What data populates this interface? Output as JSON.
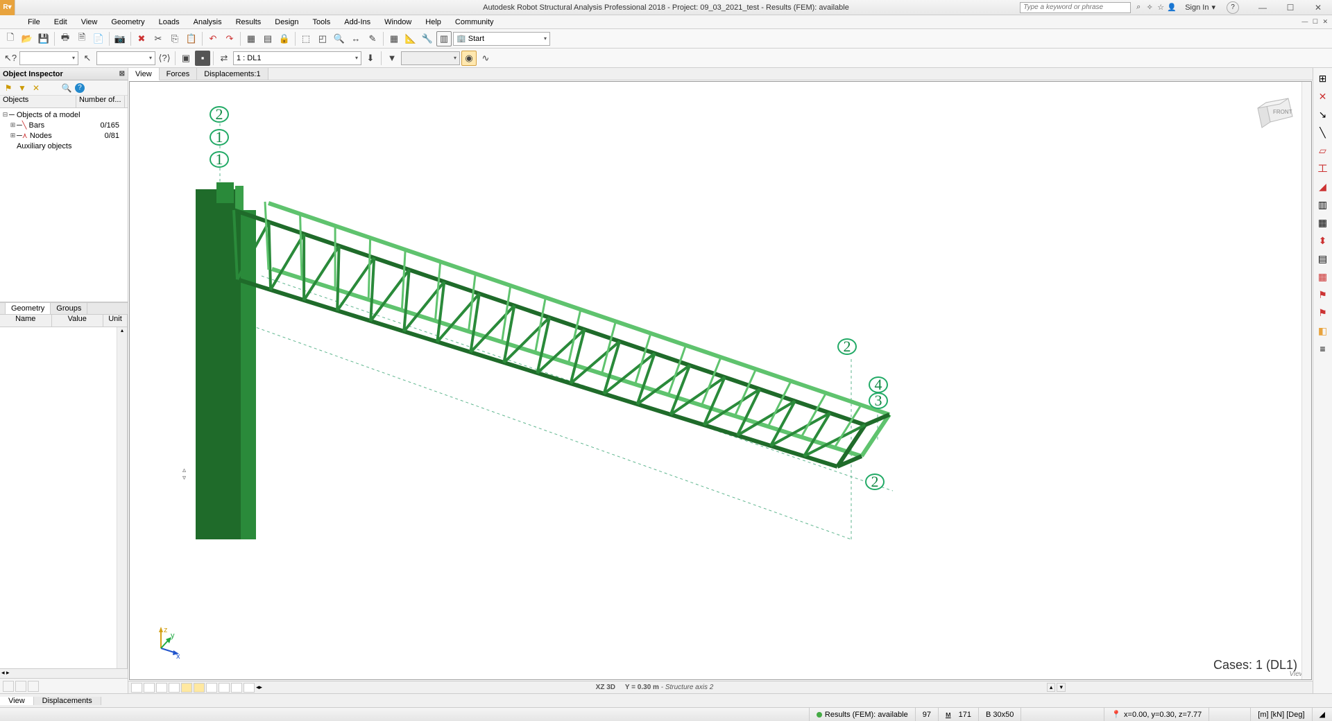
{
  "title": "Autodesk Robot Structural Analysis Professional 2018 - Project: 09_03_2021_test - Results (FEM): available",
  "search_placeholder": "Type a keyword or phrase",
  "signin": "Sign In",
  "menu": [
    "File",
    "Edit",
    "View",
    "Geometry",
    "Loads",
    "Analysis",
    "Results",
    "Design",
    "Tools",
    "Add-Ins",
    "Window",
    "Help",
    "Community"
  ],
  "toolbar2": {
    "combo_start": "Start",
    "load_case": "1 : DL1"
  },
  "inspector": {
    "title": "Object Inspector",
    "columns": [
      "Objects",
      "Number of..."
    ],
    "root": "Objects of a model",
    "items": [
      {
        "label": "Bars",
        "count": "0/165",
        "icon": "╲",
        "color": "#cc3333"
      },
      {
        "label": "Nodes",
        "count": "0/81",
        "icon": "⋏",
        "color": "#cc3333"
      }
    ],
    "aux": "Auxiliary objects",
    "prop_tabs": [
      "Geometry",
      "Groups"
    ],
    "prop_cols": [
      "Name",
      "Value",
      "Unit"
    ]
  },
  "view_tabs": [
    "View",
    "Forces",
    "Displacements:1"
  ],
  "viewport": {
    "axis_labels_left": [
      "2",
      "1",
      "1"
    ],
    "axis_labels_right": [
      "2",
      "4",
      "3",
      "2"
    ],
    "cases": "Cases: 1 (DL1)",
    "view_hint": "View",
    "info_view": "XZ 3D",
    "info_axis": "Y = 0.30 m",
    "info_axis_desc": "Structure axis 2",
    "cube_label": "FRONT",
    "triad": {
      "x": "x",
      "y": "y",
      "z": "z"
    },
    "truss_color": "#2a8a3a",
    "truss_color_light": "#5fc36e",
    "column_color": "#1f6b2a",
    "grid_color": "#5fb68f"
  },
  "bottom_tabs": [
    "View",
    "Displacements"
  ],
  "status": {
    "fem": "Results (FEM): available",
    "n1": "97",
    "n2": "171",
    "section": "B 30x50",
    "coords": "x=0.00, y=0.30, z=7.77",
    "units": "[m] [kN] [Deg]"
  }
}
